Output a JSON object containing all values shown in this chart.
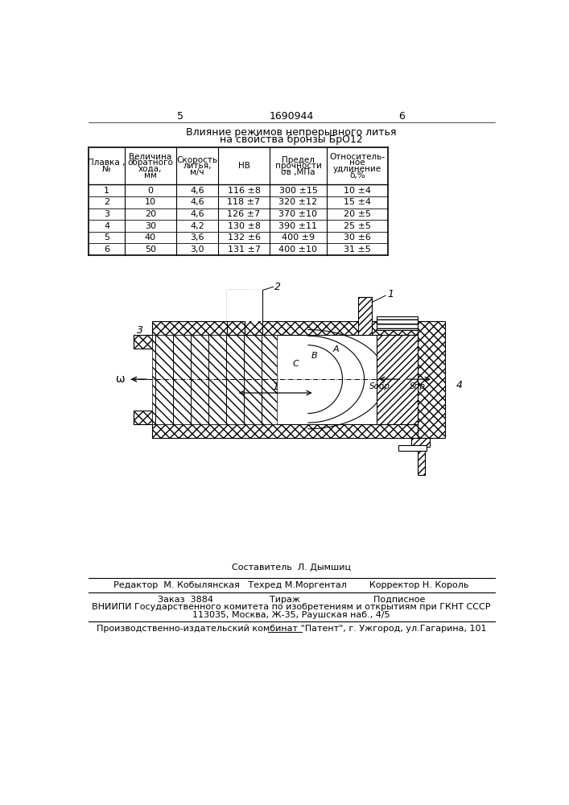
{
  "page_num_left": "5",
  "patent_num": "1690944",
  "page_num_right": "6",
  "title_line1": "Влияние режимов непрерывного литья",
  "title_line2": "на свойства бронзы БрО12",
  "header_texts": [
    [
      "Плавка ,",
      "№"
    ],
    [
      "Величина",
      "обратного",
      "хода,",
      "мм"
    ],
    [
      "Скорость",
      "литья,",
      "м/ч"
    ],
    [
      "НВ"
    ],
    [
      "Предел",
      "прочности",
      "σв ,МПа"
    ],
    [
      "Относитель-",
      "ное",
      "удлинение",
      "δ,%"
    ]
  ],
  "table_data": [
    [
      "1",
      "0",
      "4,6",
      "116 ±8",
      "300 ±15",
      "10 ±4"
    ],
    [
      "2",
      "10",
      "4,6",
      "118 ±7",
      "320 ±12",
      "15 ±4"
    ],
    [
      "3",
      "20",
      "4,6",
      "126 ±7",
      "370 ±10",
      "20 ±5"
    ],
    [
      "4",
      "30",
      "4,2",
      "130 ±8",
      "390 ±11",
      "25 ±5"
    ],
    [
      "5",
      "40",
      "3,6",
      "132 ±6",
      "400 ±9",
      "30 ±6"
    ],
    [
      "6",
      "50",
      "3,0",
      "131 ±7",
      "400 ±10",
      "31 ±5"
    ]
  ],
  "compiler_line": "Составитель  Л. Дымшиц",
  "editor_line": "Редактор  М. Кобылянская   Техред М.Моргентал        Корректор Н. Король",
  "order_line1": "Заказ  3884                    Тираж                          Подписное",
  "order_line2": "ВНИИПИ Государственного комитета по изобретениям и открытиям при ГКНТ СССР",
  "order_line3": "113035, Москва, Ж-35, Раушская наб., 4/5",
  "publisher_line": "Производственно-издательский комбинат \"Патент\", г. Ужгород, ул.Гагарина, 101",
  "bg_color": "#ffffff",
  "text_color": "#000000"
}
